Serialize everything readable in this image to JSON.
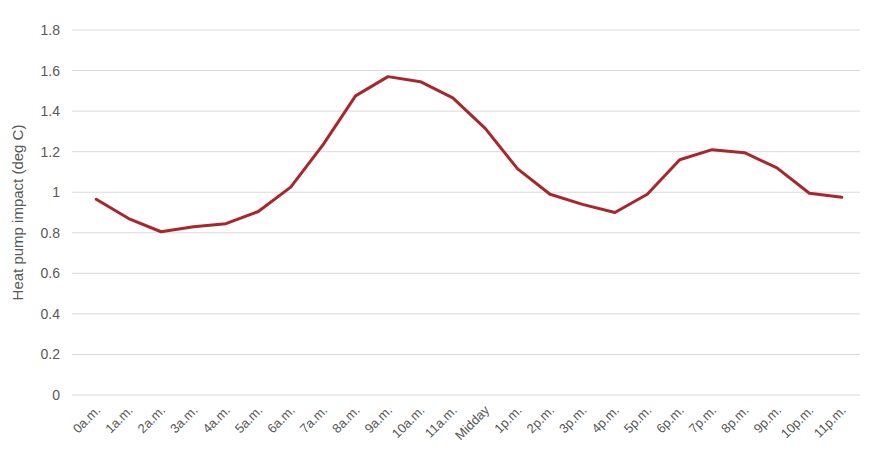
{
  "chart_data": {
    "type": "line",
    "y_label": "Heat pump impact (deg C)",
    "categories": [
      "0a.m.",
      "1a.m.",
      "2a.m.",
      "3a.m.",
      "4a.m.",
      "5a.m.",
      "6a.m.",
      "7a.m.",
      "8a.m.",
      "9a.m.",
      "10a.m.",
      "11a.m.",
      "Midday",
      "1p.m.",
      "2p.m.",
      "3p.m.",
      "4p.m.",
      "5p.m.",
      "6p.m.",
      "7p.m.",
      "8p.m.",
      "9p.m.",
      "10p.m.",
      "11p.m."
    ],
    "values": [
      0.965,
      0.87,
      0.805,
      0.83,
      0.845,
      0.905,
      1.025,
      1.235,
      1.475,
      1.57,
      1.545,
      1.465,
      1.315,
      1.115,
      0.99,
      0.94,
      0.9,
      0.99,
      1.16,
      1.21,
      1.195,
      1.12,
      0.995,
      0.975
    ],
    "color": "#a8272d",
    "ylim": [
      0,
      1.8
    ],
    "yticks": [
      0,
      0.2,
      0.4,
      0.6,
      0.8,
      1,
      1.2,
      1.4,
      1.6,
      1.8
    ],
    "grid": true
  }
}
